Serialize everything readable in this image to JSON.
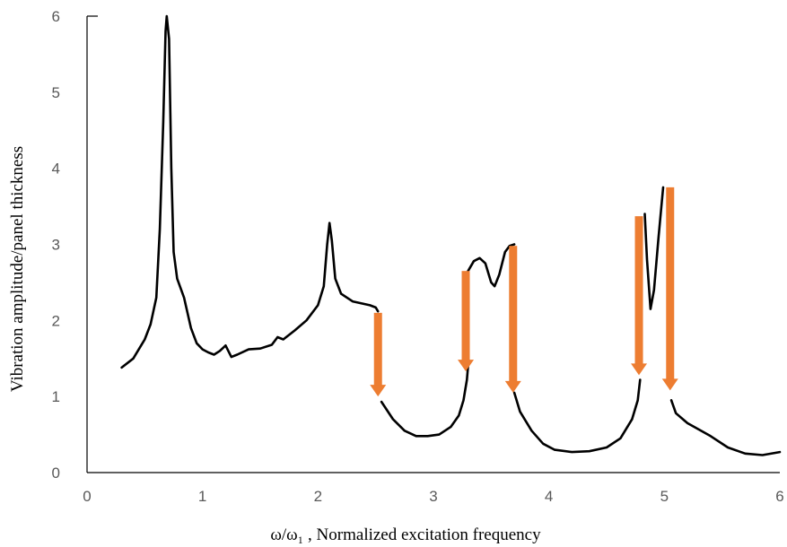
{
  "chart_data": {
    "type": "line",
    "title": "",
    "xlabel": "ω/ω₁ ,   Normalized excitation frequency",
    "ylabel": "Vibration amplitude/panel thickness",
    "xlim": [
      0,
      6
    ],
    "ylim": [
      0,
      6
    ],
    "xticks": [
      "0",
      "1",
      "2",
      "3",
      "4",
      "5",
      "6"
    ],
    "yticks": [
      "0",
      "1",
      "2",
      "3",
      "4",
      "5",
      "6"
    ],
    "grid": false,
    "legend": "none",
    "colors": {
      "curve": "#000000",
      "arrow": "#ED7D31",
      "axis": "#000000",
      "tick_text": "#595959"
    },
    "series": [
      {
        "values": [
          [
            0.3,
            1.38
          ],
          [
            0.4,
            1.5
          ],
          [
            0.5,
            1.75
          ],
          [
            0.55,
            1.95
          ],
          [
            0.6,
            2.3
          ],
          [
            0.63,
            3.2
          ],
          [
            0.66,
            4.6
          ],
          [
            0.68,
            5.8
          ],
          [
            0.69,
            6.0
          ],
          [
            0.71,
            5.7
          ],
          [
            0.73,
            4.0
          ],
          [
            0.75,
            2.9
          ],
          [
            0.78,
            2.55
          ],
          [
            0.84,
            2.3
          ],
          [
            0.9,
            1.9
          ],
          [
            0.95,
            1.7
          ],
          [
            1.0,
            1.62
          ],
          [
            1.05,
            1.58
          ],
          [
            1.1,
            1.55
          ],
          [
            1.15,
            1.6
          ],
          [
            1.2,
            1.67
          ],
          [
            1.25,
            1.52
          ],
          [
            1.3,
            1.55
          ],
          [
            1.4,
            1.62
          ],
          [
            1.5,
            1.63
          ],
          [
            1.6,
            1.68
          ],
          [
            1.65,
            1.78
          ],
          [
            1.7,
            1.75
          ],
          [
            1.8,
            1.87
          ],
          [
            1.9,
            2.0
          ],
          [
            2.0,
            2.2
          ],
          [
            2.05,
            2.45
          ],
          [
            2.08,
            3.0
          ],
          [
            2.1,
            3.28
          ],
          [
            2.12,
            3.05
          ],
          [
            2.15,
            2.55
          ],
          [
            2.2,
            2.35
          ],
          [
            2.3,
            2.25
          ],
          [
            2.45,
            2.2
          ],
          [
            2.5,
            2.17
          ],
          [
            2.52,
            2.12
          ]
        ]
      },
      {
        "values": [
          [
            2.55,
            0.93
          ],
          [
            2.65,
            0.7
          ],
          [
            2.75,
            0.55
          ],
          [
            2.85,
            0.48
          ],
          [
            2.95,
            0.48
          ],
          [
            3.05,
            0.5
          ],
          [
            3.15,
            0.6
          ],
          [
            3.22,
            0.75
          ],
          [
            3.26,
            0.95
          ],
          [
            3.29,
            1.22
          ],
          [
            3.3,
            1.4
          ]
        ]
      },
      {
        "values": [
          [
            3.3,
            2.65
          ],
          [
            3.35,
            2.78
          ],
          [
            3.4,
            2.82
          ],
          [
            3.45,
            2.75
          ],
          [
            3.5,
            2.5
          ],
          [
            3.53,
            2.45
          ],
          [
            3.57,
            2.6
          ],
          [
            3.62,
            2.9
          ],
          [
            3.66,
            2.98
          ],
          [
            3.7,
            3.0
          ]
        ]
      },
      {
        "values": [
          [
            3.7,
            1.05
          ],
          [
            3.75,
            0.8
          ],
          [
            3.85,
            0.55
          ],
          [
            3.95,
            0.38
          ],
          [
            4.05,
            0.3
          ],
          [
            4.2,
            0.27
          ],
          [
            4.35,
            0.28
          ],
          [
            4.5,
            0.33
          ],
          [
            4.62,
            0.45
          ],
          [
            4.72,
            0.7
          ],
          [
            4.77,
            0.95
          ],
          [
            4.79,
            1.22
          ]
        ]
      },
      {
        "values": [
          [
            4.83,
            3.4
          ],
          [
            4.85,
            2.8
          ],
          [
            4.88,
            2.15
          ],
          [
            4.91,
            2.4
          ],
          [
            4.95,
            3.1
          ],
          [
            4.99,
            3.75
          ]
        ]
      },
      {
        "values": [
          [
            5.06,
            0.95
          ],
          [
            5.1,
            0.78
          ],
          [
            5.2,
            0.65
          ],
          [
            5.4,
            0.48
          ],
          [
            5.55,
            0.33
          ],
          [
            5.7,
            0.25
          ],
          [
            5.85,
            0.23
          ],
          [
            6.0,
            0.27
          ]
        ]
      }
    ],
    "annotations": [
      {
        "type": "arrow",
        "x": 2.52,
        "y_from": 2.1,
        "y_to": 1.0
      },
      {
        "type": "arrow",
        "x": 3.28,
        "y_from": 2.65,
        "y_to": 1.33
      },
      {
        "type": "arrow",
        "x": 3.69,
        "y_from": 2.98,
        "y_to": 1.05
      },
      {
        "type": "arrow",
        "x": 4.78,
        "y_from": 3.37,
        "y_to": 1.28
      },
      {
        "type": "arrow",
        "x": 5.05,
        "y_from": 3.75,
        "y_to": 1.08
      }
    ]
  }
}
